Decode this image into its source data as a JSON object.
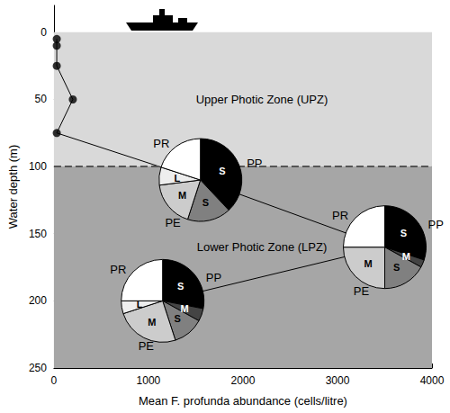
{
  "chart_data": {
    "type": "line",
    "xlabel": "Mean F. profunda abundance (cells/litre)",
    "ylabel": "Water depth (m)",
    "xlim": [
      0,
      4000
    ],
    "xticks": [
      0,
      1000,
      2000,
      3000,
      4000
    ],
    "ylim": [
      250,
      -20
    ],
    "yticks": [
      0,
      50,
      100,
      150,
      200,
      250
    ],
    "x": [
      30,
      30,
      30,
      200,
      30
    ],
    "values": [
      5,
      10,
      25,
      50,
      75
    ],
    "color": "#000000",
    "marker": "circle",
    "grid": false,
    "zones": [
      {
        "label": "Upper Photic Zone (UPZ)",
        "from": 0,
        "to": 100,
        "color": "#d9d9d9"
      },
      {
        "label": "Lower Photic Zone (LPZ)",
        "from": 100,
        "to": 250,
        "color": "#a6a6a6"
      }
    ],
    "pies": [
      {
        "x": 1550,
        "y": 110,
        "slices": [
          {
            "group": "PP",
            "label": "S",
            "value": 38,
            "color": "#000000"
          },
          {
            "group": "PE",
            "label": "S",
            "value": 17,
            "color": "#808080"
          },
          {
            "group": "PE",
            "label": "M",
            "value": 18,
            "color": "#cccccc"
          },
          {
            "label": "L",
            "value": 7,
            "color": "#eeeeee"
          },
          {
            "group": "PR",
            "value": 20,
            "color": "#ffffff"
          }
        ]
      },
      {
        "x": 3500,
        "y": 160,
        "slices": [
          {
            "group": "PP",
            "label": "S",
            "value": 30,
            "color": "#000000"
          },
          {
            "group": "PP",
            "label": "M",
            "value": 3,
            "color": "#444444"
          },
          {
            "group": "PE",
            "label": "S",
            "value": 17,
            "color": "#808080"
          },
          {
            "group": "PE",
            "label": "M",
            "value": 25,
            "color": "#cccccc"
          },
          {
            "group": "PR",
            "value": 25,
            "color": "#ffffff"
          }
        ]
      },
      {
        "x": 1150,
        "y": 200,
        "slices": [
          {
            "group": "PP",
            "label": "S",
            "value": 28,
            "color": "#000000"
          },
          {
            "group": "PP",
            "label": "M",
            "value": 5,
            "color": "#444444"
          },
          {
            "group": "PE",
            "label": "S",
            "value": 12,
            "color": "#808080"
          },
          {
            "group": "PE",
            "label": "M",
            "value": 25,
            "color": "#cccccc"
          },
          {
            "label": "L",
            "value": 5,
            "color": "#eeeeee"
          },
          {
            "group": "PR",
            "value": 25,
            "color": "#ffffff"
          }
        ]
      }
    ]
  }
}
